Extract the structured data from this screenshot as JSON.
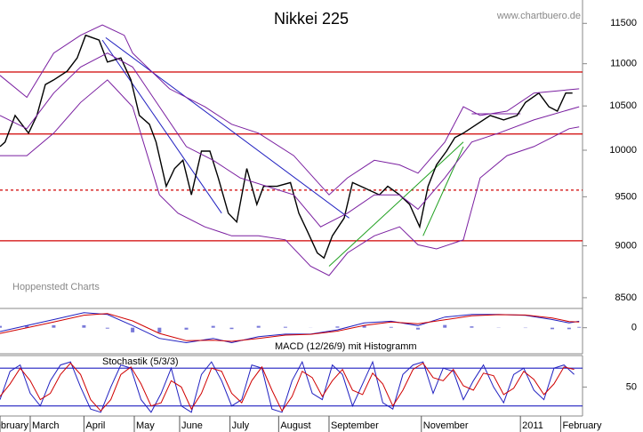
{
  "chart_data": [
    {
      "type": "line",
      "title": "Nikkei 225",
      "source": "www.chartbuero.de",
      "annotation": "Hoppenstedt Charts",
      "log_scale": true,
      "xlim": [
        0,
        347
      ],
      "ylim": [
        8400,
        11800
      ],
      "yticks": [
        8500,
        9000,
        9500,
        10000,
        10500,
        11000,
        11500
      ],
      "series": [
        {
          "color": "#000000",
          "x": [
            0,
            3,
            9,
            17,
            22,
            27,
            32,
            40,
            46,
            51,
            59,
            64,
            72,
            78,
            83,
            89,
            93,
            99,
            104,
            109,
            114,
            120,
            125,
            130,
            136,
            141,
            147,
            153,
            157,
            165,
            173,
            178,
            183,
            189,
            193,
            198,
            205,
            210,
            215,
            221,
            226,
            231,
            238,
            244,
            250,
            255,
            260,
            266,
            271,
            276,
            284,
            292,
            300,
            308,
            313,
            321,
            327,
            332,
            337,
            341
          ],
          "values": [
            10040,
            10090,
            10390,
            10190,
            10390,
            10750,
            10805,
            10910,
            11070,
            11350,
            11290,
            11020,
            11070,
            10805,
            10390,
            10290,
            10090,
            9610,
            9800,
            9890,
            9520,
            9990,
            9990,
            9700,
            9330,
            9240,
            9800,
            9420,
            9610,
            9610,
            9650,
            9330,
            9150,
            8930,
            8880,
            9100,
            9280,
            9650,
            9610,
            9560,
            9520,
            9610,
            9520,
            9420,
            9190,
            9610,
            9840,
            9990,
            10140,
            10190,
            10290,
            10390,
            10340,
            10390,
            10540,
            10650,
            10490,
            10440,
            10650,
            10650
          ]
        },
        {
          "color": "#7a1fa0",
          "x": [
            0,
            16,
            32,
            48,
            61,
            74,
            79,
            101,
            122,
            138,
            154,
            175,
            196,
            207,
            223,
            238,
            249,
            265,
            276,
            286,
            302,
            318,
            345
          ],
          "values": [
            10860,
            10600,
            11130,
            11350,
            11480,
            11350,
            11130,
            10700,
            10490,
            10290,
            10190,
            9940,
            9520,
            9700,
            9890,
            9840,
            9750,
            10090,
            10490,
            10390,
            10440,
            10650,
            10700
          ]
        },
        {
          "color": "#7a1fa0",
          "x": [
            0,
            16,
            32,
            48,
            64,
            79,
            95,
            111,
            127,
            143,
            159,
            175,
            191,
            207,
            223,
            238,
            249,
            265,
            281,
            297,
            318,
            345
          ],
          "values": [
            10390,
            10240,
            10650,
            10960,
            11130,
            10960,
            10490,
            10040,
            9890,
            9700,
            9610,
            9520,
            9190,
            9330,
            9520,
            9520,
            9370,
            9700,
            10090,
            10190,
            10340,
            10490
          ]
        },
        {
          "color": "#7a1fa0",
          "x": [
            0,
            16,
            32,
            48,
            64,
            79,
            95,
            106,
            122,
            138,
            154,
            170,
            185,
            196,
            207,
            223,
            238,
            249,
            260,
            276,
            286,
            302,
            318,
            339,
            345
          ],
          "values": [
            9940,
            9940,
            10190,
            10540,
            10805,
            10490,
            9520,
            9330,
            9190,
            9100,
            9100,
            9060,
            8800,
            8710,
            8930,
            9100,
            9190,
            9010,
            8970,
            9060,
            9700,
            9940,
            10040,
            10240,
            10260
          ]
        }
      ],
      "hlines": [
        {
          "value": 10900,
          "color": "#d00000"
        },
        {
          "value": 10180,
          "color": "#d00000"
        },
        {
          "value": 9570,
          "color": "#d00000",
          "dash": true
        },
        {
          "value": 9050,
          "color": "#d00000"
        }
      ],
      "trendlines": [
        {
          "x": [
            61,
            132
          ],
          "values": [
            11290,
            9330
          ],
          "color": "#2020c0"
        },
        {
          "x": [
            63,
            208
          ],
          "values": [
            11320,
            9280
          ],
          "color": "#2020c0"
        },
        {
          "x": [
            196,
            276
          ],
          "values": [
            8800,
            10090
          ],
          "color": "#20a020"
        },
        {
          "x": [
            252,
            276
          ],
          "values": [
            9100,
            10040
          ],
          "color": "#20a020"
        },
        {
          "x": [
            281,
            310
          ],
          "values": [
            10410,
            10410
          ],
          "color": "#7a1fa0"
        }
      ]
    },
    {
      "type": "line",
      "title": "MACD (12/26/9) mit Histogramm",
      "xlim": [
        0,
        347
      ],
      "ylim": [
        -230,
        170
      ],
      "yticks": [
        0
      ],
      "bars": {
        "color": "#2020c0",
        "x": [
          0,
          16,
          32,
          50,
          64,
          79,
          95,
          111,
          127,
          138,
          154,
          170,
          185,
          201,
          217,
          233,
          249,
          265,
          281,
          297,
          313,
          329,
          339,
          345
        ],
        "values": [
          16,
          19,
          22,
          22,
          -8,
          -41,
          -44,
          -17,
          16,
          -12,
          16,
          8,
          1,
          11,
          22,
          7,
          -16,
          24,
          12,
          2,
          -3,
          -13,
          -13,
          7
        ]
      },
      "series": [
        {
          "color": "#2020c0",
          "x": [
            0,
            16,
            32,
            50,
            64,
            79,
            95,
            111,
            127,
            138,
            154,
            170,
            185,
            201,
            217,
            233,
            249,
            265,
            281,
            297,
            313,
            329,
            339,
            345
          ],
          "values": [
            -34,
            19,
            72,
            132,
            117,
            19,
            -94,
            -132,
            -94,
            -132,
            -79,
            -57,
            -57,
            -19,
            42,
            57,
            19,
            94,
            117,
            117,
            109,
            72,
            42,
            57
          ]
        },
        {
          "color": "#d00000",
          "x": [
            0,
            16,
            32,
            50,
            64,
            79,
            95,
            111,
            127,
            138,
            154,
            170,
            185,
            201,
            217,
            233,
            249,
            265,
            281,
            297,
            313,
            329,
            339,
            345
          ],
          "values": [
            -50,
            0,
            50,
            110,
            125,
            60,
            -50,
            -115,
            -110,
            -120,
            -95,
            -65,
            -58,
            -30,
            20,
            50,
            35,
            70,
            105,
            115,
            112,
            85,
            55,
            50
          ]
        }
      ]
    },
    {
      "type": "line",
      "title": "Stochastik (5/3/3)",
      "xlim": [
        0,
        347
      ],
      "ylim": [
        4,
        100
      ],
      "yticks": [
        50
      ],
      "xticks": [
        {
          "value": 0,
          "label": "February"
        },
        {
          "value": 18,
          "label": "March"
        },
        {
          "value": 50,
          "label": "April"
        },
        {
          "value": 80,
          "label": "May"
        },
        {
          "value": 107,
          "label": "June"
        },
        {
          "value": 137,
          "label": "July"
        },
        {
          "value": 166,
          "label": "August"
        },
        {
          "value": 196,
          "label": "September"
        },
        {
          "value": 251,
          "label": "November"
        },
        {
          "value": 310,
          "label": "2011"
        },
        {
          "value": 334,
          "label": "February"
        }
      ],
      "hlines": [
        {
          "value": 80,
          "color": "#2020c0"
        },
        {
          "value": 20,
          "color": "#2020c0"
        }
      ],
      "series": [
        {
          "color": "#2020c0",
          "x": [
            0,
            6,
            12,
            18,
            24,
            30,
            36,
            42,
            48,
            54,
            60,
            66,
            72,
            78,
            84,
            90,
            96,
            102,
            108,
            114,
            120,
            126,
            132,
            138,
            144,
            150,
            156,
            162,
            168,
            174,
            180,
            186,
            192,
            198,
            204,
            210,
            216,
            222,
            228,
            234,
            240,
            246,
            252,
            258,
            264,
            270,
            276,
            282,
            288,
            294,
            300,
            306,
            312,
            318,
            324,
            330,
            336,
            342
          ],
          "values": [
            30,
            75,
            85,
            40,
            20,
            60,
            85,
            90,
            50,
            15,
            10,
            50,
            85,
            80,
            30,
            10,
            40,
            80,
            20,
            10,
            70,
            90,
            60,
            20,
            30,
            85,
            80,
            15,
            10,
            60,
            90,
            40,
            30,
            85,
            70,
            20,
            55,
            90,
            25,
            15,
            70,
            85,
            90,
            40,
            80,
            75,
            30,
            60,
            85,
            50,
            25,
            70,
            80,
            45,
            30,
            80,
            85,
            70
          ]
        },
        {
          "color": "#d00000",
          "x": [
            0,
            6,
            12,
            18,
            24,
            30,
            36,
            42,
            48,
            54,
            60,
            66,
            72,
            78,
            84,
            90,
            96,
            102,
            108,
            114,
            120,
            126,
            132,
            138,
            144,
            150,
            156,
            162,
            168,
            174,
            180,
            186,
            192,
            198,
            204,
            210,
            216,
            222,
            228,
            234,
            240,
            246,
            252,
            258,
            264,
            270,
            276,
            282,
            288,
            294,
            300,
            306,
            312,
            318,
            324,
            330,
            336,
            342
          ],
          "values": [
            35,
            55,
            80,
            60,
            30,
            40,
            70,
            88,
            70,
            30,
            12,
            30,
            70,
            82,
            55,
            20,
            25,
            60,
            50,
            15,
            40,
            80,
            75,
            40,
            25,
            60,
            82,
            45,
            12,
            35,
            75,
            65,
            35,
            60,
            78,
            45,
            38,
            72,
            55,
            20,
            45,
            78,
            88,
            65,
            60,
            78,
            52,
            45,
            72,
            68,
            38,
            48,
            75,
            62,
            38,
            55,
            82,
            78
          ]
        }
      ]
    }
  ]
}
